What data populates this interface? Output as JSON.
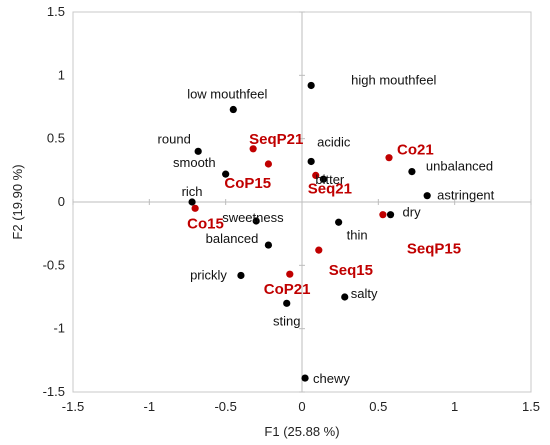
{
  "chart_data": {
    "type": "scatter",
    "title": "",
    "xlabel": "F1 (25.88 %)",
    "ylabel": "F2 (19.90 %)",
    "xlim": [
      -1.5,
      1.5
    ],
    "ylim": [
      -1.5,
      1.5
    ],
    "xticks": [
      -1.5,
      -1,
      -0.5,
      0,
      0.5,
      1,
      1.5
    ],
    "yticks": [
      -1.5,
      -1,
      -0.5,
      0,
      0.5,
      1,
      1.5
    ],
    "grid": false,
    "colors": {
      "attributes": "#000000",
      "samples": "#c00000"
    },
    "series": [
      {
        "points": [
          {
            "label": "low mouthfeel",
            "x": -0.45,
            "y": 0.73
          },
          {
            "label": "high mouthfeel",
            "x": 0.06,
            "y": 0.92
          },
          {
            "label": "round",
            "x": -0.68,
            "y": 0.4
          },
          {
            "label": "smooth",
            "x": -0.5,
            "y": 0.22
          },
          {
            "label": "rich",
            "x": -0.72,
            "y": 0.0
          },
          {
            "label": "acidic",
            "x": 0.06,
            "y": 0.32
          },
          {
            "label": "bitter",
            "x": 0.14,
            "y": 0.18
          },
          {
            "label": "unbalanced",
            "x": 0.72,
            "y": 0.24
          },
          {
            "label": "astringent",
            "x": 0.82,
            "y": 0.05
          },
          {
            "label": "dry",
            "x": 0.58,
            "y": -0.1
          },
          {
            "label": "sweetness",
            "x": -0.3,
            "y": -0.15
          },
          {
            "label": "thin",
            "x": 0.24,
            "y": -0.16
          },
          {
            "label": "balanced",
            "x": -0.22,
            "y": -0.34
          },
          {
            "label": "prickly",
            "x": -0.4,
            "y": -0.58
          },
          {
            "label": "salty",
            "x": 0.28,
            "y": -0.75
          },
          {
            "label": "sting",
            "x": -0.1,
            "y": -0.8
          },
          {
            "label": "chewy",
            "x": 0.02,
            "y": -1.39
          }
        ]
      },
      {
        "points": [
          {
            "label": "SeqP21",
            "x": -0.32,
            "y": 0.42
          },
          {
            "label": "CoP15",
            "x": -0.22,
            "y": 0.3
          },
          {
            "label": "Seq21",
            "x": 0.09,
            "y": 0.21
          },
          {
            "label": "Co21",
            "x": 0.57,
            "y": 0.35
          },
          {
            "label": "Co15",
            "x": -0.7,
            "y": -0.05
          },
          {
            "label": "SeqP15",
            "x": 0.53,
            "y": -0.1
          },
          {
            "label": "Seq15",
            "x": 0.11,
            "y": -0.38
          },
          {
            "label": "CoP21",
            "x": -0.08,
            "y": -0.57
          }
        ]
      }
    ]
  }
}
